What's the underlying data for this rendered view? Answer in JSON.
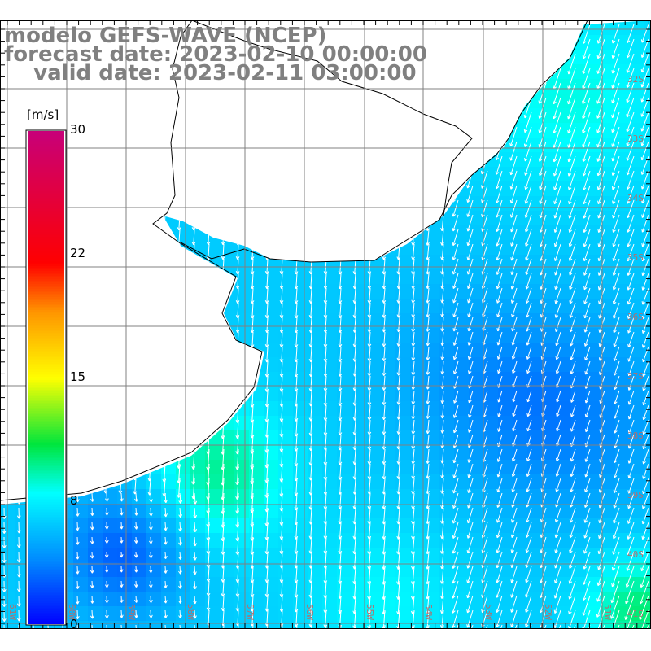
{
  "title": {
    "model": "modelo GEFS-WAVE (NCEP)",
    "forecast": "forecast date: 2023-02-10 00:00:00",
    "valid": "    valid date: 2023-02-11 03:00:00"
  },
  "colorbar": {
    "unit": "[m/s]",
    "min": 0,
    "max": 30,
    "ticks": [
      "30",
      "22",
      "15",
      "8",
      "0"
    ],
    "tick_values": [
      30,
      22,
      15,
      8,
      0
    ]
  },
  "axes": {
    "lon_labels": [
      "61W",
      "60W",
      "59W",
      "58W",
      "57W",
      "56W",
      "55W",
      "54W",
      "53W",
      "52W",
      "51W"
    ],
    "lat_labels": [
      "32S",
      "33S",
      "34S",
      "35S",
      "36S",
      "37S",
      "38S",
      "39S",
      "40S",
      "41S"
    ]
  },
  "colors": {
    "grid": "#808080",
    "label": "#b07070",
    "land": "#ffffff",
    "coast": "#000000",
    "arrow": "#ffffff"
  }
}
